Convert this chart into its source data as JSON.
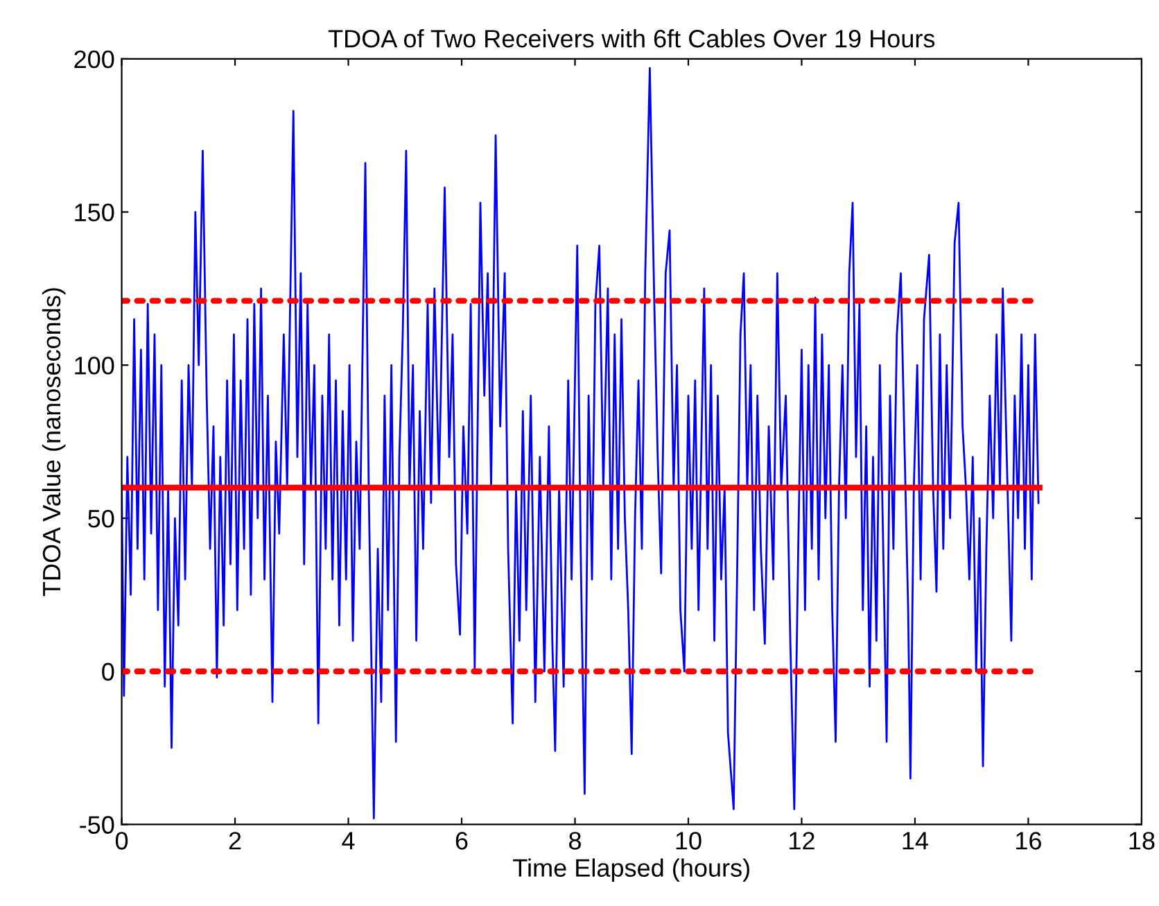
{
  "chart_data": {
    "type": "line",
    "title": "TDOA of Two Receivers with 6ft Cables Over 19 Hours",
    "xlabel": "Time Elapsed (hours)",
    "ylabel": "TDOA Value (nanoseconds)",
    "xlim": [
      0,
      18
    ],
    "xticks": [
      0,
      2,
      4,
      6,
      8,
      10,
      12,
      14,
      16,
      18
    ],
    "ylim": [
      -50,
      200
    ],
    "yticks": [
      -50,
      0,
      50,
      100,
      150,
      200
    ],
    "grid": false,
    "marker": "none",
    "series": [
      {
        "color": "#0000ff",
        "line_style": "solid",
        "x": [
          0.0,
          0.04,
          0.1,
          0.16,
          0.22,
          0.28,
          0.34,
          0.4,
          0.46,
          0.52,
          0.58,
          0.64,
          0.7,
          0.76,
          0.82,
          0.88,
          0.94,
          1.0,
          1.06,
          1.12,
          1.18,
          1.24,
          1.3,
          1.36,
          1.43,
          1.5,
          1.56,
          1.62,
          1.68,
          1.74,
          1.8,
          1.86,
          1.92,
          1.98,
          2.04,
          2.1,
          2.16,
          2.22,
          2.28,
          2.34,
          2.4,
          2.46,
          2.52,
          2.58,
          2.66,
          2.72,
          2.78,
          2.86,
          2.92,
          3.03,
          3.1,
          3.16,
          3.22,
          3.28,
          3.34,
          3.4,
          3.47,
          3.54,
          3.6,
          3.66,
          3.72,
          3.78,
          3.84,
          3.9,
          3.96,
          4.02,
          4.08,
          4.14,
          4.2,
          4.3,
          4.36,
          4.45,
          4.52,
          4.58,
          4.64,
          4.7,
          4.76,
          4.84,
          4.9,
          4.96,
          5.02,
          5.08,
          5.14,
          5.2,
          5.26,
          5.32,
          5.4,
          5.46,
          5.52,
          5.6,
          5.7,
          5.78,
          5.84,
          5.9,
          5.97,
          6.03,
          6.1,
          6.16,
          6.23,
          6.33,
          6.4,
          6.46,
          6.52,
          6.6,
          6.68,
          6.76,
          6.82,
          6.9,
          6.96,
          7.02,
          7.08,
          7.14,
          7.22,
          7.3,
          7.38,
          7.46,
          7.54,
          7.6,
          7.65,
          7.72,
          7.8,
          7.88,
          7.94,
          8.04,
          8.1,
          8.17,
          8.24,
          8.3,
          8.36,
          8.43,
          8.5,
          8.58,
          8.64,
          8.7,
          8.76,
          8.82,
          8.88,
          8.94,
          9.0,
          9.06,
          9.12,
          9.18,
          9.24,
          9.32,
          9.4,
          9.46,
          9.52,
          9.6,
          9.67,
          9.74,
          9.8,
          9.86,
          9.93,
          10.0,
          10.06,
          10.12,
          10.18,
          10.28,
          10.34,
          10.4,
          10.46,
          10.52,
          10.58,
          10.64,
          10.7,
          10.8,
          10.86,
          10.92,
          10.98,
          11.04,
          11.1,
          11.16,
          11.22,
          11.28,
          11.35,
          11.42,
          11.5,
          11.57,
          11.64,
          11.72,
          11.8,
          11.87,
          11.94,
          12.0,
          12.06,
          12.12,
          12.18,
          12.24,
          12.3,
          12.36,
          12.42,
          12.48,
          12.54,
          12.6,
          12.66,
          12.72,
          12.78,
          12.84,
          12.9,
          12.96,
          13.02,
          13.08,
          13.14,
          13.2,
          13.26,
          13.32,
          13.38,
          13.44,
          13.5,
          13.56,
          13.62,
          13.68,
          13.75,
          13.82,
          13.88,
          13.92,
          13.98,
          14.04,
          14.1,
          14.16,
          14.25,
          14.32,
          14.38,
          14.44,
          14.5,
          14.56,
          14.62,
          14.7,
          14.77,
          14.84,
          14.9,
          14.96,
          15.02,
          15.08,
          15.14,
          15.2,
          15.26,
          15.32,
          15.38,
          15.44,
          15.5,
          15.55,
          15.62,
          15.7,
          15.76,
          15.82,
          15.88,
          15.94,
          16.0,
          16.06,
          16.12,
          16.18
        ],
        "values": [
          60,
          -8,
          70,
          25,
          115,
          40,
          105,
          30,
          120,
          45,
          110,
          20,
          100,
          -5,
          60,
          -25,
          50,
          15,
          95,
          30,
          100,
          60,
          150,
          100,
          170,
          90,
          40,
          80,
          -2,
          70,
          15,
          95,
          35,
          110,
          20,
          95,
          40,
          115,
          25,
          120,
          50,
          125,
          30,
          90,
          -10,
          75,
          45,
          110,
          60,
          183,
          70,
          130,
          35,
          120,
          60,
          100,
          -17,
          90,
          40,
          110,
          30,
          95,
          15,
          85,
          30,
          100,
          10,
          75,
          40,
          166,
          60,
          -48,
          40,
          -10,
          90,
          20,
          100,
          -23,
          70,
          110,
          170,
          60,
          100,
          10,
          85,
          40,
          120,
          55,
          125,
          60,
          158,
          70,
          110,
          35,
          12,
          80,
          45,
          120,
          1,
          153,
          90,
          130,
          60,
          175,
          80,
          130,
          40,
          -17,
          60,
          10,
          85,
          20,
          90,
          -10,
          70,
          0,
          80,
          10,
          -26,
          60,
          -5,
          95,
          30,
          139,
          40,
          -40,
          90,
          30,
          120,
          139,
          60,
          125,
          30,
          110,
          40,
          115,
          50,
          20,
          -27,
          50,
          95,
          40,
          130,
          197,
          120,
          70,
          32,
          130,
          144,
          60,
          100,
          20,
          0,
          90,
          40,
          95,
          20,
          125,
          40,
          100,
          10,
          90,
          30,
          60,
          -20,
          -45,
          30,
          110,
          130,
          60,
          100,
          20,
          90,
          40,
          9,
          80,
          30,
          130,
          60,
          90,
          10,
          -45,
          40,
          105,
          20,
          100,
          40,
          122,
          30,
          110,
          50,
          100,
          20,
          -23,
          60,
          100,
          50,
          130,
          153,
          70,
          120,
          20,
          80,
          -5,
          70,
          10,
          100,
          40,
          -23,
          90,
          40,
          110,
          130,
          70,
          20,
          -35,
          60,
          100,
          30,
          115,
          136,
          60,
          26,
          110,
          40,
          100,
          50,
          140,
          153,
          80,
          60,
          30,
          70,
          0,
          50,
          -31,
          40,
          90,
          50,
          110,
          60,
          125,
          70,
          10,
          90,
          50,
          110,
          40,
          100,
          30,
          110,
          55
        ]
      },
      {
        "color": "#ff0000",
        "line_style": "solid",
        "x": [
          0,
          16.2
        ],
        "values": [
          60,
          60
        ]
      },
      {
        "color": "#ff0000",
        "line_style": "dotted",
        "x": [
          0,
          16.2
        ],
        "values": [
          121,
          121
        ]
      },
      {
        "color": "#ff0000",
        "line_style": "dotted",
        "x": [
          0,
          16.2
        ],
        "values": [
          0,
          0
        ]
      }
    ]
  }
}
